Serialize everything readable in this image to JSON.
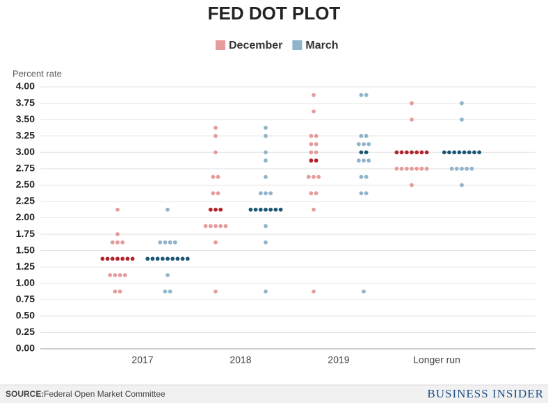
{
  "chart_data": {
    "type": "dot",
    "title": "FED DOT PLOT",
    "y_label": "Percent rate",
    "categories": [
      "2017",
      "2018",
      "2019",
      "Longer run"
    ],
    "series": [
      {
        "name": "December",
        "color": "#e59c9c",
        "median_color": "#b3232c",
        "values": [
          [
            2.125,
            1.75,
            1.625,
            1.625,
            1.625,
            1.375,
            1.375,
            1.375,
            1.375,
            1.375,
            1.375,
            1.375,
            1.125,
            1.125,
            1.125,
            1.125,
            0.875,
            0.875
          ],
          [
            3.375,
            3.25,
            3.0,
            2.625,
            2.625,
            2.375,
            2.375,
            2.125,
            2.125,
            2.125,
            1.875,
            1.875,
            1.875,
            1.875,
            1.875,
            1.625,
            0.875
          ],
          [
            3.875,
            3.625,
            3.25,
            3.25,
            3.125,
            3.125,
            3.0,
            3.0,
            2.875,
            2.875,
            2.625,
            2.625,
            2.625,
            2.375,
            2.375,
            2.125,
            0.875
          ],
          [
            3.75,
            3.5,
            3.0,
            3.0,
            3.0,
            3.0,
            3.0,
            3.0,
            3.0,
            2.75,
            2.75,
            2.75,
            2.75,
            2.75,
            2.75,
            2.75,
            2.5
          ]
        ]
      },
      {
        "name": "March",
        "color": "#90b4c9",
        "median_color": "#1c5876",
        "values": [
          [
            2.125,
            1.625,
            1.625,
            1.625,
            1.625,
            1.375,
            1.375,
            1.375,
            1.375,
            1.375,
            1.375,
            1.375,
            1.375,
            1.375,
            1.125,
            0.875,
            0.875
          ],
          [
            3.375,
            3.25,
            3.0,
            2.875,
            2.625,
            2.375,
            2.375,
            2.375,
            2.125,
            2.125,
            2.125,
            2.125,
            2.125,
            2.125,
            2.125,
            1.875,
            1.625,
            0.875
          ],
          [
            3.875,
            3.875,
            3.25,
            3.25,
            3.125,
            3.125,
            3.125,
            3.0,
            3.0,
            2.875,
            2.875,
            2.875,
            2.625,
            2.625,
            2.375,
            2.375,
            0.875
          ],
          [
            3.75,
            3.5,
            3.0,
            3.0,
            3.0,
            3.0,
            3.0,
            3.0,
            3.0,
            3.0,
            2.75,
            2.75,
            2.75,
            2.75,
            2.75,
            2.5
          ]
        ]
      }
    ],
    "ylim": [
      0,
      4
    ],
    "yticks": [
      {
        "value": 0,
        "label": "0.00"
      },
      {
        "value": 0.25,
        "label": "0.25"
      },
      {
        "value": 0.5,
        "label": "0.50"
      },
      {
        "value": 0.75,
        "label": "0.75"
      },
      {
        "value": 1,
        "label": "1.00"
      },
      {
        "value": 1.25,
        "label": "1.25"
      },
      {
        "value": 1.5,
        "label": "1.50"
      },
      {
        "value": 1.75,
        "label": "1.75"
      },
      {
        "value": 2,
        "label": "2.00"
      },
      {
        "value": 2.25,
        "label": "2.25"
      },
      {
        "value": 2.5,
        "label": "2.50"
      },
      {
        "value": 2.75,
        "label": "2.75"
      },
      {
        "value": 3,
        "label": "3.00"
      },
      {
        "value": 3.25,
        "label": "3.25"
      },
      {
        "value": 3.5,
        "label": "3.50"
      },
      {
        "value": 3.75,
        "label": "3.75"
      },
      {
        "value": 4,
        "label": "4.00"
      }
    ],
    "grid": true,
    "legend": "top"
  },
  "footer": {
    "source_label": "SOURCE:",
    "source": "Federal Open Market Committee",
    "brand": "BUSINESS INSIDER"
  }
}
